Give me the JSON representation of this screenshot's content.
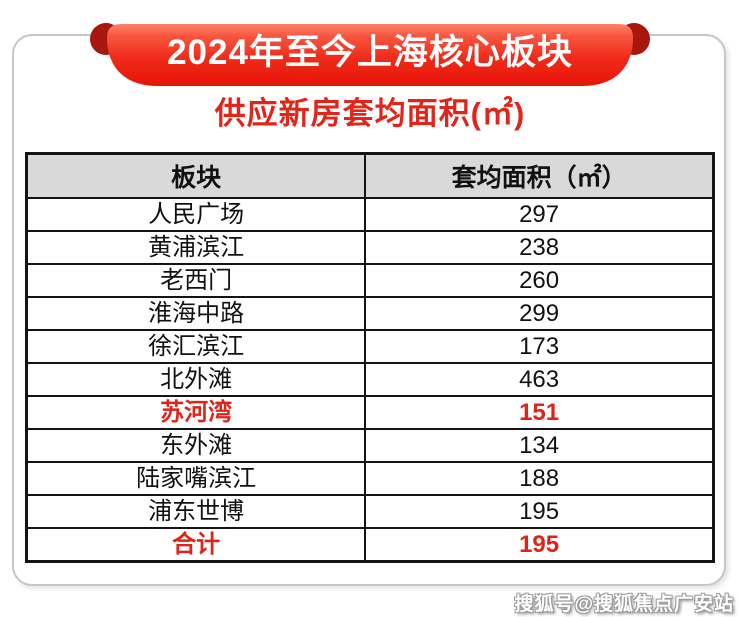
{
  "header": {
    "banner_title": "2024年至今上海核心板块",
    "subtitle": "供应新房套均面积(㎡)"
  },
  "table": {
    "columns": [
      "板块",
      "套均面积（㎡）"
    ],
    "rows": [
      {
        "name": "人民广场",
        "value": "297",
        "highlight": false
      },
      {
        "name": "黄浦滨江",
        "value": "238",
        "highlight": false
      },
      {
        "name": "老西门",
        "value": "260",
        "highlight": false
      },
      {
        "name": "淮海中路",
        "value": "299",
        "highlight": false
      },
      {
        "name": "徐汇滨江",
        "value": "173",
        "highlight": false
      },
      {
        "name": "北外滩",
        "value": "463",
        "highlight": false
      },
      {
        "name": "苏河湾",
        "value": "151",
        "highlight": true
      },
      {
        "name": "东外滩",
        "value": "134",
        "highlight": false
      },
      {
        "name": "陆家嘴滨江",
        "value": "188",
        "highlight": false
      },
      {
        "name": "浦东世博",
        "value": "195",
        "highlight": false
      },
      {
        "name": "合计",
        "value": "195",
        "highlight": true
      }
    ]
  },
  "watermark": "搜狐号@搜狐焦点广安站",
  "colors": {
    "banner_red_top": "#fd8266",
    "banner_red_mid": "#ef2b1a",
    "banner_red_bottom": "#e71408",
    "fold_dark_red": "#a8170e",
    "subtitle_red": "#e2251a",
    "highlight_red": "#e02318",
    "header_bg": "#d9d9d9",
    "table_border": "#141414",
    "card_border": "#c6c6c6"
  },
  "chart_data": {
    "type": "table",
    "title": "2024年至今上海核心板块 供应新房套均面积(㎡)",
    "columns": [
      "板块",
      "套均面积（㎡）"
    ],
    "categories": [
      "人民广场",
      "黄浦滨江",
      "老西门",
      "淮海中路",
      "徐汇滨江",
      "北外滩",
      "苏河湾",
      "东外滩",
      "陆家嘴滨江",
      "浦东世博",
      "合计"
    ],
    "values": [
      297,
      238,
      260,
      299,
      173,
      463,
      151,
      134,
      188,
      195,
      195
    ],
    "highlighted_rows": [
      "苏河湾",
      "合计"
    ]
  }
}
